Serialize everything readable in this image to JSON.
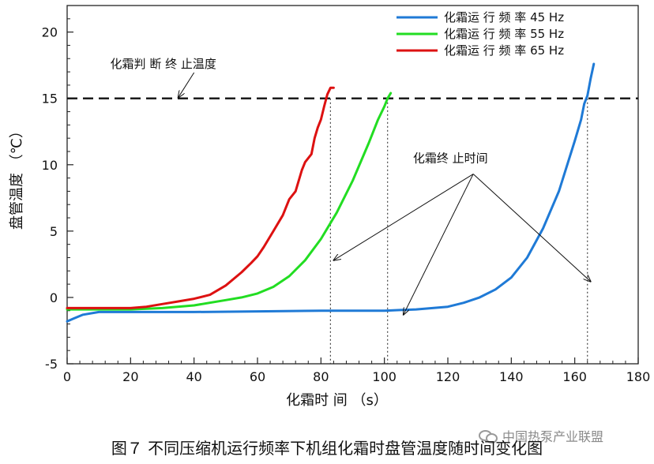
{
  "chart_data": {
    "type": "line",
    "xlabel": "化霜时 间 （s）",
    "ylabel": "盘管温度 （℃）",
    "xlim": [
      0,
      180
    ],
    "ylim": [
      -5,
      22
    ],
    "xticks": [
      "0",
      "20",
      "40",
      "60",
      "80",
      "100",
      "120",
      "140",
      "160",
      "180"
    ],
    "yticks": [
      "-5",
      "0",
      "5",
      "10",
      "15",
      "20"
    ],
    "grid": false,
    "legend_position": "top-right",
    "series": [
      {
        "name": "化霜运 行 频 率 45 Hz",
        "color": "#1f7ad6",
        "x": [
          0,
          2,
          5,
          10,
          20,
          40,
          60,
          80,
          100,
          110,
          120,
          125,
          130,
          135,
          140,
          145,
          150,
          155,
          160,
          162,
          163,
          164,
          165,
          166
        ],
        "y": [
          -1.8,
          -1.6,
          -1.3,
          -1.1,
          -1.1,
          -1.1,
          -1.05,
          -1.0,
          -1.0,
          -0.9,
          -0.7,
          -0.4,
          0.0,
          0.6,
          1.5,
          3.0,
          5.2,
          8.0,
          11.8,
          13.4,
          14.6,
          15.2,
          16.5,
          17.6
        ]
      },
      {
        "name": "化霜运 行 频 率 55 Hz",
        "color": "#22dd22",
        "x": [
          0,
          10,
          20,
          30,
          40,
          50,
          55,
          60,
          65,
          70,
          75,
          80,
          85,
          90,
          95,
          98,
          100,
          101,
          102
        ],
        "y": [
          -0.9,
          -0.9,
          -0.9,
          -0.8,
          -0.6,
          -0.2,
          0.0,
          0.3,
          0.8,
          1.6,
          2.8,
          4.4,
          6.4,
          8.8,
          11.6,
          13.4,
          14.4,
          15.0,
          15.4
        ]
      },
      {
        "name": "化霜运 行 频 率 65 Hz",
        "color": "#dd1111",
        "x": [
          0,
          10,
          20,
          25,
          30,
          35,
          40,
          45,
          50,
          55,
          58,
          60,
          62,
          65,
          68,
          70,
          72,
          74,
          75,
          77,
          78,
          79,
          80,
          81,
          82,
          83,
          84
        ],
        "y": [
          -0.8,
          -0.8,
          -0.8,
          -0.7,
          -0.5,
          -0.3,
          -0.1,
          0.2,
          0.9,
          1.9,
          2.6,
          3.1,
          3.8,
          5.0,
          6.2,
          7.4,
          8.0,
          9.6,
          10.2,
          10.8,
          12.0,
          12.8,
          13.4,
          14.4,
          15.3,
          15.8,
          15.8
        ]
      }
    ],
    "reference_line": {
      "y": 15,
      "label": "化霜判 断 终 止温度",
      "style": "dashed"
    },
    "end_markers": {
      "x": [
        83,
        101,
        164
      ]
    },
    "annotation": {
      "label": "化霜终 止时间"
    }
  },
  "caption": "图７ 不同压缩机运行频率下机组化霜时盘管温度随时间变化图",
  "watermark": "中国热泵产业联盟"
}
